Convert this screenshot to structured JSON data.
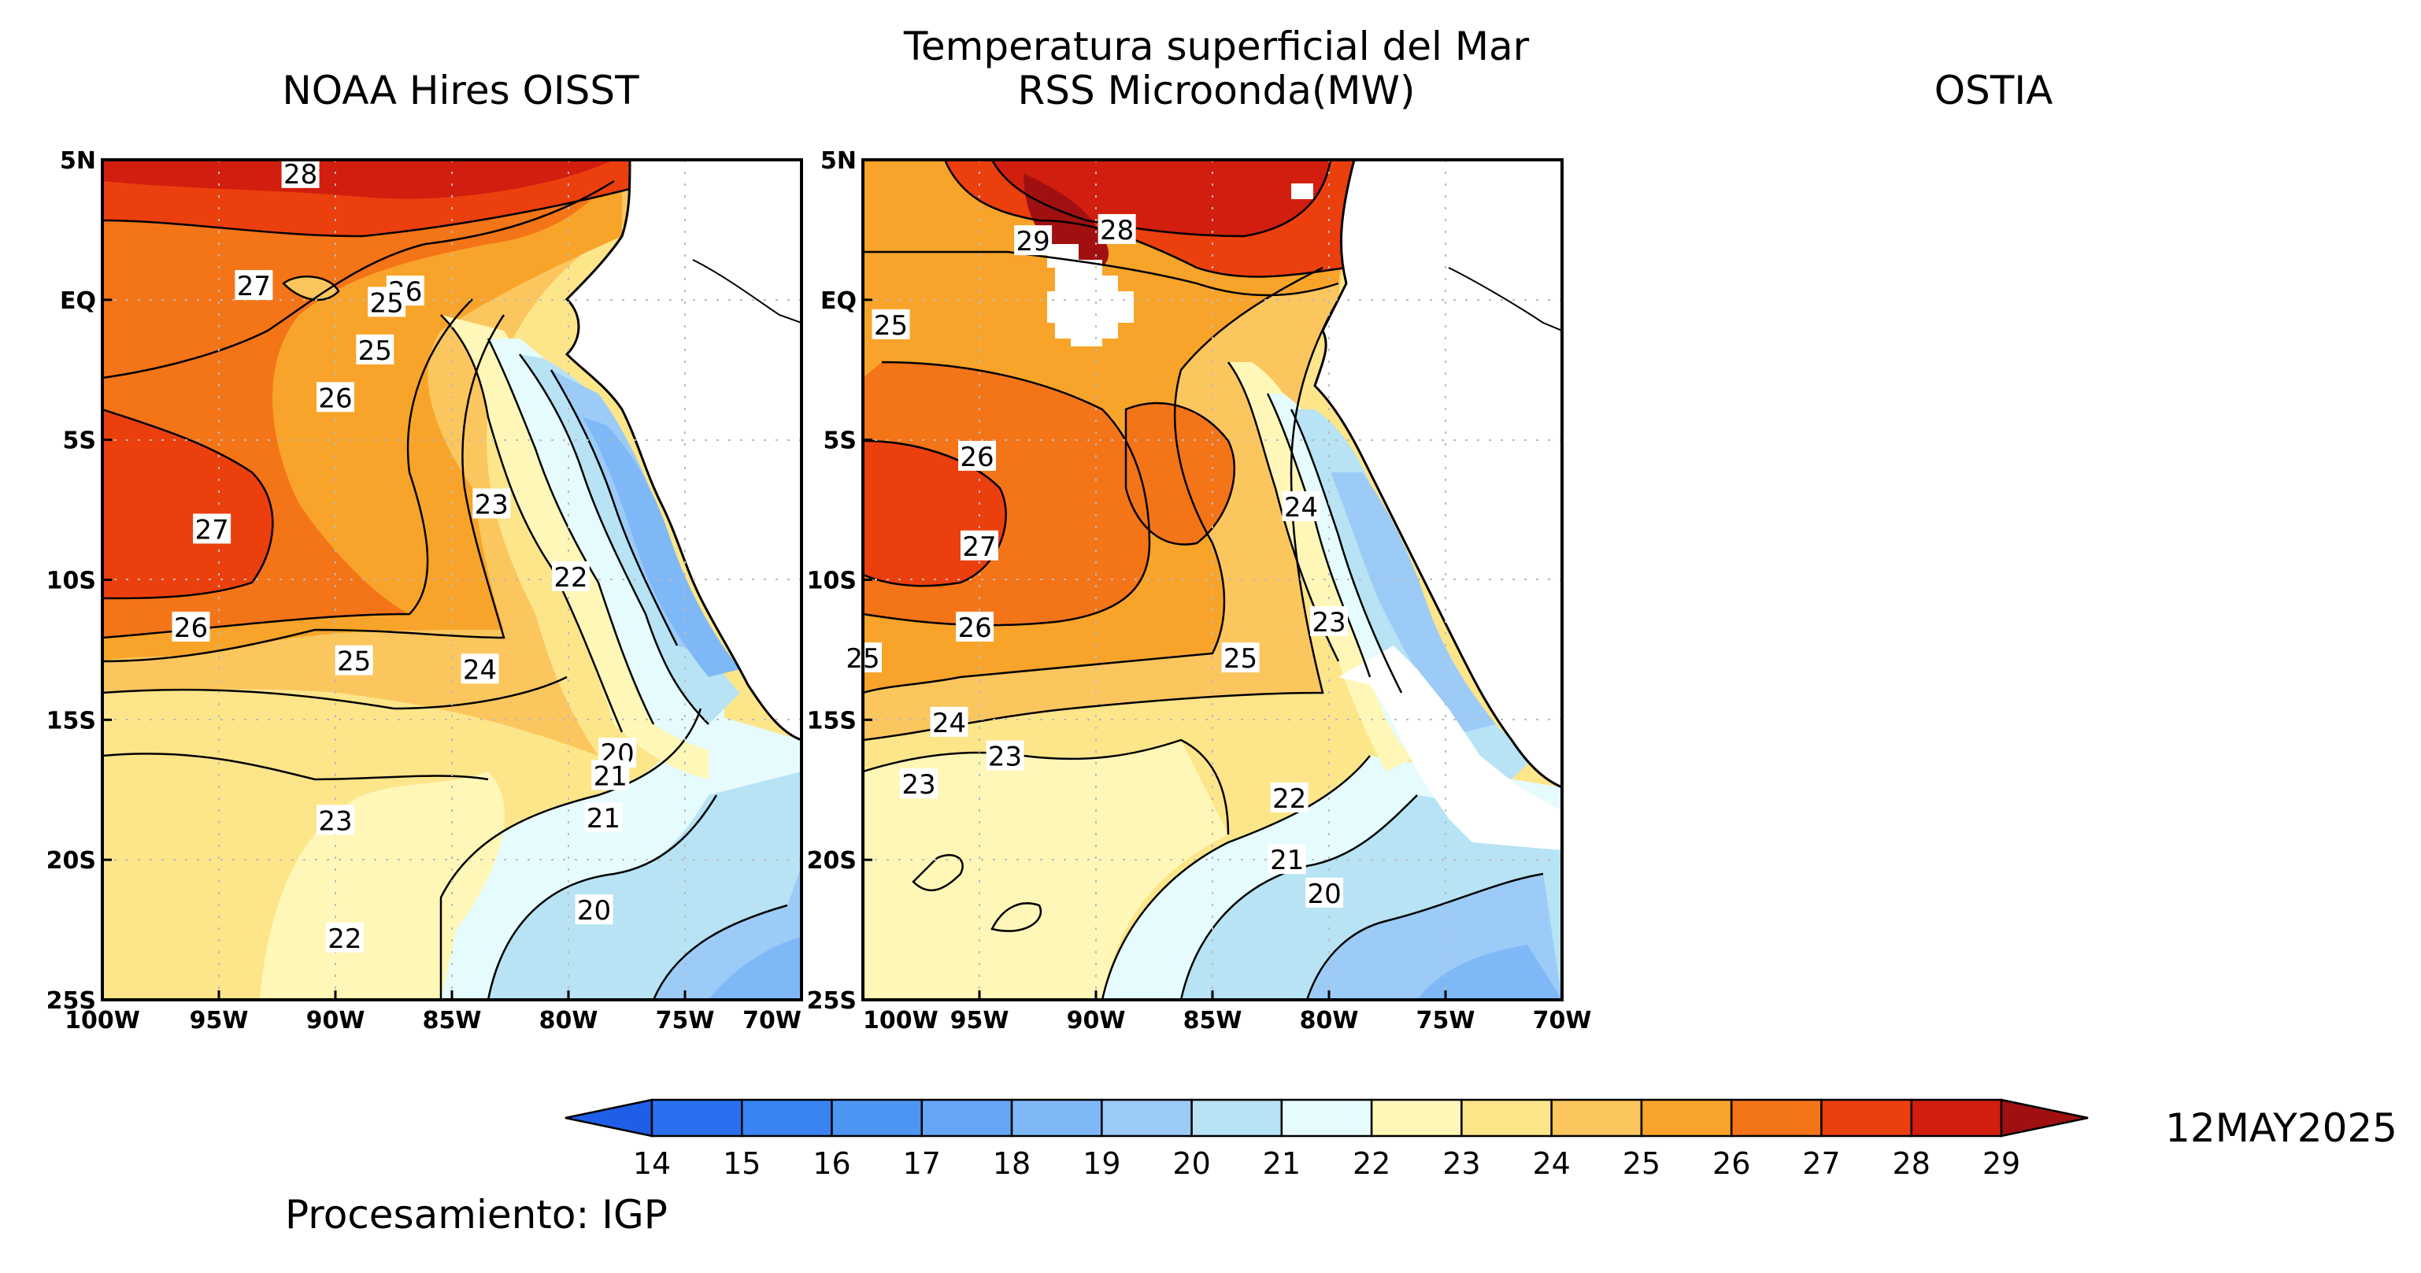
{
  "header": {
    "main_title": "Temperatura superficial del Mar",
    "date": "12MAY2025",
    "credit": "Procesamiento: IGP"
  },
  "panels": [
    {
      "title": "NOAA Hires OISST",
      "lat_ticks": [
        "5N",
        "EQ",
        "5S",
        "10S",
        "15S",
        "20S",
        "25S"
      ],
      "lon_ticks": [
        "100W",
        "95W",
        "90W",
        "85W",
        "80W",
        "75W",
        "70W"
      ],
      "contour_labels": [
        {
          "text": "28",
          "lon": -91.5,
          "lat": 4.5
        },
        {
          "text": "27",
          "lon": -93.5,
          "lat": 0.5
        },
        {
          "text": "26",
          "lon": -87.0,
          "lat": 0.3
        },
        {
          "text": "25",
          "lon": -87.8,
          "lat": -0.1
        },
        {
          "text": "25",
          "lon": -88.3,
          "lat": -1.8
        },
        {
          "text": "26",
          "lon": -90.0,
          "lat": -3.5
        },
        {
          "text": "27",
          "lon": -95.3,
          "lat": -8.2
        },
        {
          "text": "23",
          "lon": -83.3,
          "lat": -7.3
        },
        {
          "text": "22",
          "lon": -79.9,
          "lat": -9.9
        },
        {
          "text": "26",
          "lon": -96.2,
          "lat": -11.7
        },
        {
          "text": "25",
          "lon": -89.2,
          "lat": -12.9
        },
        {
          "text": "24",
          "lon": -83.8,
          "lat": -13.2
        },
        {
          "text": "20",
          "lon": -77.9,
          "lat": -16.2
        },
        {
          "text": "21",
          "lon": -78.2,
          "lat": -17.0
        },
        {
          "text": "21",
          "lon": -78.5,
          "lat": -18.5
        },
        {
          "text": "23",
          "lon": -90.0,
          "lat": -18.6
        },
        {
          "text": "20",
          "lon": -78.9,
          "lat": -21.8
        },
        {
          "text": "22",
          "lon": -89.6,
          "lat": -22.8
        }
      ]
    },
    {
      "title": "RSS Microonda(MW)",
      "lat_ticks": [
        "5N",
        "EQ",
        "5S",
        "10S",
        "15S",
        "20S",
        "25S"
      ],
      "lon_ticks": [
        "100W",
        "95W",
        "90W",
        "85W",
        "80W",
        "75W",
        "70W"
      ],
      "contour_labels": [
        {
          "text": "29",
          "lon": -92.7,
          "lat": 2.1
        },
        {
          "text": "28",
          "lon": -89.1,
          "lat": 2.5
        },
        {
          "text": "25",
          "lon": -98.8,
          "lat": -0.9
        },
        {
          "text": "26",
          "lon": -95.1,
          "lat": -5.6
        },
        {
          "text": "24",
          "lon": -81.2,
          "lat": -7.4
        },
        {
          "text": "27",
          "lon": -95.0,
          "lat": -8.8
        },
        {
          "text": "23",
          "lon": -80.0,
          "lat": -11.5
        },
        {
          "text": "26",
          "lon": -95.2,
          "lat": -11.7
        },
        {
          "text": "25",
          "lon": -100.0,
          "lat": -12.8
        },
        {
          "text": "25",
          "lon": -83.8,
          "lat": -12.8
        },
        {
          "text": "24",
          "lon": -96.3,
          "lat": -15.1
        },
        {
          "text": "23",
          "lon": -93.9,
          "lat": -16.3
        },
        {
          "text": "23",
          "lon": -97.6,
          "lat": -17.3
        },
        {
          "text": "22",
          "lon": -81.7,
          "lat": -17.8
        },
        {
          "text": "21",
          "lon": -81.8,
          "lat": -20.0
        },
        {
          "text": "20",
          "lon": -80.2,
          "lat": -21.2
        }
      ]
    },
    {
      "title": "OSTIA",
      "lat_ticks": [],
      "lon_ticks": [],
      "contour_labels": []
    }
  ],
  "colorbar": {
    "ticks": [
      "14",
      "15",
      "16",
      "17",
      "18",
      "19",
      "20",
      "21",
      "22",
      "23",
      "24",
      "25",
      "26",
      "27",
      "28",
      "29"
    ],
    "under_color": "#1f5fe8",
    "over_color": "#a01010",
    "colors": [
      "#2a6ff0",
      "#3a83f2",
      "#4d95f3",
      "#64a6f4",
      "#7fb8f6",
      "#9ccbf7",
      "#b7e3f4",
      "#e6fbfd",
      "#fff7b8",
      "#fde58a",
      "#fcc65e",
      "#f8a42a",
      "#f47418",
      "#ec3f0e",
      "#d11e0e"
    ]
  }
}
